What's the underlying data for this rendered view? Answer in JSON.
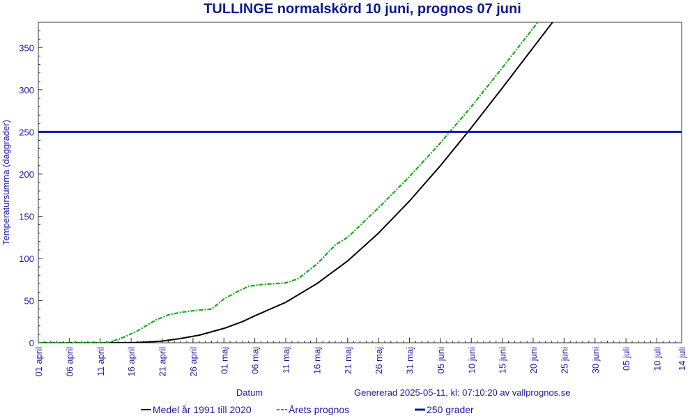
{
  "chart_data": {
    "type": "line",
    "title": "TULLINGE normalskörd 10 juni, prognos 07 juni",
    "xlabel": "Datum",
    "ylabel": "Temperatursumma (daggrader)",
    "generated_note": "Genererad 2025-05-11, kl: 07:10:20 av vallprognos.se",
    "x_start": "2025-04-01",
    "x_end": "2025-07-14",
    "ylim": [
      0,
      380
    ],
    "y_ticks": [
      0,
      50,
      100,
      150,
      200,
      250,
      300,
      350
    ],
    "x_ticks": [
      {
        "date": "2025-04-01",
        "label": "01 april"
      },
      {
        "date": "2025-04-06",
        "label": "06 april"
      },
      {
        "date": "2025-04-11",
        "label": "11 april"
      },
      {
        "date": "2025-04-16",
        "label": "16 april"
      },
      {
        "date": "2025-04-21",
        "label": "21 april"
      },
      {
        "date": "2025-04-26",
        "label": "26 april"
      },
      {
        "date": "2025-05-01",
        "label": "01 maj"
      },
      {
        "date": "2025-05-06",
        "label": "06 maj"
      },
      {
        "date": "2025-05-11",
        "label": "11 maj"
      },
      {
        "date": "2025-05-16",
        "label": "16 maj"
      },
      {
        "date": "2025-05-21",
        "label": "21 maj"
      },
      {
        "date": "2025-05-26",
        "label": "26 maj"
      },
      {
        "date": "2025-05-31",
        "label": "31 maj"
      },
      {
        "date": "2025-06-05",
        "label": "05 juni"
      },
      {
        "date": "2025-06-10",
        "label": "10 juni"
      },
      {
        "date": "2025-06-15",
        "label": "15 juni"
      },
      {
        "date": "2025-06-20",
        "label": "20 juni"
      },
      {
        "date": "2025-06-25",
        "label": "25 juni"
      },
      {
        "date": "2025-06-30",
        "label": "30 juni"
      },
      {
        "date": "2025-07-05",
        "label": "05 juli"
      },
      {
        "date": "2025-07-10",
        "label": "10 juli"
      },
      {
        "date": "2025-07-14",
        "label": "14 juli"
      }
    ],
    "series": [
      {
        "name": "Medel år 1991 till 2020",
        "color": "#000000",
        "style": "solid",
        "points": [
          {
            "x": "2025-04-01",
            "y": 0
          },
          {
            "x": "2025-04-11",
            "y": 0
          },
          {
            "x": "2025-04-16",
            "y": 0
          },
          {
            "x": "2025-04-19",
            "y": 1
          },
          {
            "x": "2025-04-21",
            "y": 2
          },
          {
            "x": "2025-04-24",
            "y": 5
          },
          {
            "x": "2025-04-27",
            "y": 9
          },
          {
            "x": "2025-05-01",
            "y": 17
          },
          {
            "x": "2025-05-04",
            "y": 25
          },
          {
            "x": "2025-05-06",
            "y": 32
          },
          {
            "x": "2025-05-11",
            "y": 48
          },
          {
            "x": "2025-05-16",
            "y": 70
          },
          {
            "x": "2025-05-21",
            "y": 97
          },
          {
            "x": "2025-05-26",
            "y": 130
          },
          {
            "x": "2025-05-31",
            "y": 168
          },
          {
            "x": "2025-06-05",
            "y": 210
          },
          {
            "x": "2025-06-10",
            "y": 255
          },
          {
            "x": "2025-06-15",
            "y": 302
          },
          {
            "x": "2025-06-20",
            "y": 350
          },
          {
            "x": "2025-06-25",
            "y": 398
          }
        ]
      },
      {
        "name": "Årets prognos",
        "color": "#1aaa1a",
        "style": "dashed",
        "points": [
          {
            "x": "2025-04-01",
            "y": 0
          },
          {
            "x": "2025-04-12",
            "y": 0
          },
          {
            "x": "2025-04-14",
            "y": 4
          },
          {
            "x": "2025-04-17",
            "y": 14
          },
          {
            "x": "2025-04-20",
            "y": 27
          },
          {
            "x": "2025-04-22",
            "y": 33
          },
          {
            "x": "2025-04-24",
            "y": 36
          },
          {
            "x": "2025-04-26",
            "y": 38
          },
          {
            "x": "2025-04-29",
            "y": 40
          },
          {
            "x": "2025-05-01",
            "y": 52
          },
          {
            "x": "2025-05-03",
            "y": 60
          },
          {
            "x": "2025-05-05",
            "y": 67
          },
          {
            "x": "2025-05-07",
            "y": 69
          },
          {
            "x": "2025-05-11",
            "y": 71
          },
          {
            "x": "2025-05-13",
            "y": 76
          },
          {
            "x": "2025-05-16",
            "y": 93
          },
          {
            "x": "2025-05-19",
            "y": 116
          },
          {
            "x": "2025-05-21",
            "y": 125
          },
          {
            "x": "2025-05-26",
            "y": 160
          },
          {
            "x": "2025-05-31",
            "y": 197
          },
          {
            "x": "2025-06-05",
            "y": 237
          },
          {
            "x": "2025-06-10",
            "y": 280
          },
          {
            "x": "2025-06-15",
            "y": 326
          },
          {
            "x": "2025-06-20",
            "y": 373
          },
          {
            "x": "2025-06-24",
            "y": 410
          }
        ]
      },
      {
        "name": "250 grader",
        "color": "#0a1aa8",
        "style": "solid",
        "points": [
          {
            "x": "2025-04-01",
            "y": 250
          },
          {
            "x": "2025-07-14",
            "y": 250
          }
        ]
      }
    ],
    "grid": false,
    "legend_position": "bottom"
  }
}
